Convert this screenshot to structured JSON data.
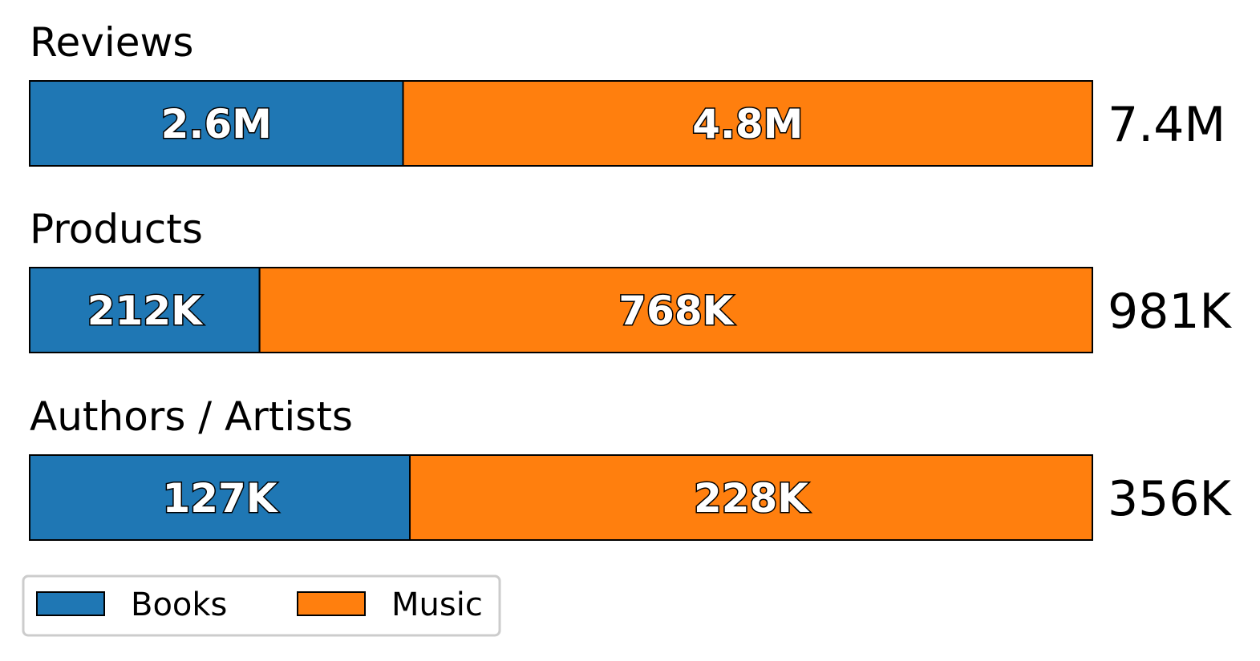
{
  "chart_data": {
    "type": "bar",
    "orientation": "horizontal",
    "stacked": true,
    "panels": [
      {
        "title": "Reviews",
        "total_label": "7.4M",
        "segments": [
          {
            "series": "Books",
            "value": 2.6,
            "label": "2.6M"
          },
          {
            "series": "Music",
            "value": 4.8,
            "label": "4.8M"
          }
        ]
      },
      {
        "title": "Products",
        "total_label": "981K",
        "segments": [
          {
            "series": "Books",
            "value": 212,
            "label": "212K"
          },
          {
            "series": "Music",
            "value": 768,
            "label": "768K"
          }
        ]
      },
      {
        "title": "Authors / Artists",
        "total_label": "356K",
        "segments": [
          {
            "series": "Books",
            "value": 127,
            "label": "127K"
          },
          {
            "series": "Music",
            "value": 228,
            "label": "228K"
          }
        ]
      }
    ],
    "series": [
      {
        "name": "Books",
        "color": "#1f77b4"
      },
      {
        "name": "Music",
        "color": "#ff7f0e"
      }
    ],
    "legend": {
      "placement": "bottom-left",
      "columns": 2
    },
    "grid": false,
    "axes_visible": false
  }
}
